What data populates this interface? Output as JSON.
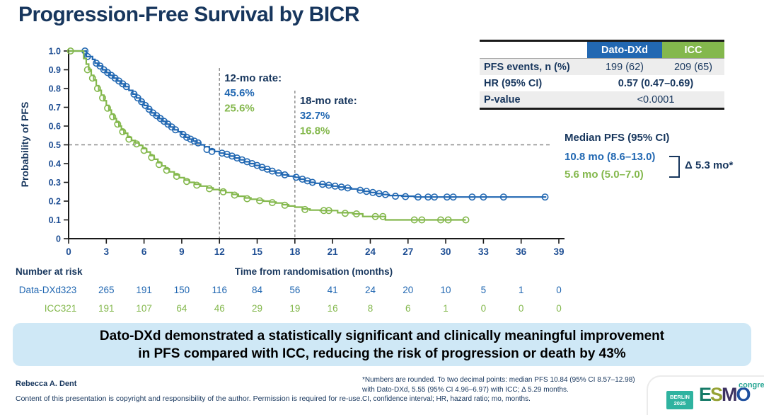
{
  "title": "Progression-Free Survival by BICR",
  "colors": {
    "navy": "#17365d",
    "dato_blue": "#2268b2",
    "icc_green": "#84b84d",
    "axis": "#1a1a1a",
    "dashed": "#8a8a8a",
    "banner_bg": "#cfe8f6",
    "row_shade": "#ededed"
  },
  "chart_data": {
    "type": "line",
    "variant": "kaplan_meier_step",
    "xlabel": "Time from randomisation (months)",
    "ylabel": "Probability of PFS",
    "xlim": [
      0,
      39
    ],
    "ylim": [
      0,
      1.0
    ],
    "xticks": [
      0,
      3,
      6,
      9,
      12,
      15,
      18,
      21,
      24,
      27,
      30,
      33,
      36,
      39
    ],
    "ytick_labels": [
      "1.0",
      "0.9",
      "0.8",
      "0.7",
      "0.6",
      "0.5",
      "0.4",
      "0.3",
      "0.2",
      "0.1",
      "0"
    ],
    "yticks": [
      1.0,
      0.9,
      0.8,
      0.7,
      0.6,
      0.5,
      0.4,
      0.3,
      0.2,
      0.1,
      0
    ],
    "grid": false,
    "legend": "none",
    "reference_lines": {
      "horizontal_at": 0.5,
      "vertical_at": [
        12,
        18
      ]
    },
    "annotations": [
      {
        "label": "12-mo rate:",
        "x_month": 12,
        "values": [
          {
            "text": "45.6%",
            "series": "Dato-DXd"
          },
          {
            "text": "25.6%",
            "series": "ICC"
          }
        ]
      },
      {
        "label": "18-mo rate:",
        "x_month": 18,
        "values": [
          {
            "text": "32.7%",
            "series": "Dato-DXd"
          },
          {
            "text": "16.8%",
            "series": "ICC"
          }
        ]
      }
    ],
    "series": [
      {
        "name": "Dato-DXd",
        "color": "#2268b2",
        "points": [
          [
            0,
            1.0
          ],
          [
            1.2,
            1.0
          ],
          [
            1.4,
            0.97
          ],
          [
            1.9,
            0.955
          ],
          [
            2.1,
            0.935
          ],
          [
            2.4,
            0.92
          ],
          [
            2.7,
            0.9
          ],
          [
            3.0,
            0.885
          ],
          [
            3.3,
            0.87
          ],
          [
            3.6,
            0.855
          ],
          [
            3.9,
            0.84
          ],
          [
            4.2,
            0.825
          ],
          [
            4.5,
            0.81
          ],
          [
            4.8,
            0.79
          ],
          [
            5.1,
            0.77
          ],
          [
            5.4,
            0.75
          ],
          [
            5.7,
            0.73
          ],
          [
            6.0,
            0.71
          ],
          [
            6.3,
            0.69
          ],
          [
            6.6,
            0.67
          ],
          [
            6.9,
            0.655
          ],
          [
            7.2,
            0.64
          ],
          [
            7.5,
            0.625
          ],
          [
            7.8,
            0.61
          ],
          [
            8.1,
            0.595
          ],
          [
            8.4,
            0.58
          ],
          [
            8.7,
            0.57
          ],
          [
            9.0,
            0.555
          ],
          [
            9.3,
            0.54
          ],
          [
            9.6,
            0.53
          ],
          [
            9.9,
            0.52
          ],
          [
            10.2,
            0.51
          ],
          [
            10.5,
            0.5
          ],
          [
            10.8,
            0.49
          ],
          [
            11.2,
            0.475
          ],
          [
            11.6,
            0.465
          ],
          [
            12.0,
            0.456
          ],
          [
            12.4,
            0.45
          ],
          [
            12.8,
            0.44
          ],
          [
            13.2,
            0.43
          ],
          [
            13.6,
            0.42
          ],
          [
            14.0,
            0.41
          ],
          [
            14.4,
            0.4
          ],
          [
            14.8,
            0.39
          ],
          [
            15.2,
            0.38
          ],
          [
            15.6,
            0.37
          ],
          [
            16.0,
            0.36
          ],
          [
            16.5,
            0.35
          ],
          [
            17.0,
            0.34
          ],
          [
            17.5,
            0.333
          ],
          [
            18.0,
            0.327
          ],
          [
            18.4,
            0.317
          ],
          [
            18.8,
            0.308
          ],
          [
            19.2,
            0.3
          ],
          [
            19.6,
            0.295
          ],
          [
            20.0,
            0.29
          ],
          [
            20.5,
            0.285
          ],
          [
            21.0,
            0.28
          ],
          [
            21.5,
            0.275
          ],
          [
            22.0,
            0.27
          ],
          [
            22.5,
            0.265
          ],
          [
            23.0,
            0.258
          ],
          [
            23.5,
            0.252
          ],
          [
            24.0,
            0.246
          ],
          [
            24.5,
            0.24
          ],
          [
            25.0,
            0.235
          ],
          [
            25.5,
            0.23
          ],
          [
            26.5,
            0.226
          ],
          [
            27.5,
            0.222
          ],
          [
            38.0,
            0.222
          ]
        ],
        "censors": [
          [
            1.3,
            1.0
          ],
          [
            1.5,
            0.97
          ],
          [
            2.2,
            0.935
          ],
          [
            2.5,
            0.92
          ],
          [
            2.8,
            0.9
          ],
          [
            3.1,
            0.885
          ],
          [
            3.4,
            0.87
          ],
          [
            3.7,
            0.855
          ],
          [
            4.0,
            0.84
          ],
          [
            4.3,
            0.825
          ],
          [
            4.6,
            0.81
          ],
          [
            5.2,
            0.77
          ],
          [
            5.5,
            0.75
          ],
          [
            5.8,
            0.73
          ],
          [
            6.1,
            0.71
          ],
          [
            6.4,
            0.69
          ],
          [
            6.7,
            0.67
          ],
          [
            7.0,
            0.655
          ],
          [
            7.3,
            0.64
          ],
          [
            7.6,
            0.625
          ],
          [
            7.9,
            0.61
          ],
          [
            8.2,
            0.595
          ],
          [
            8.5,
            0.58
          ],
          [
            9.1,
            0.555
          ],
          [
            9.4,
            0.54
          ],
          [
            9.7,
            0.53
          ],
          [
            10.0,
            0.52
          ],
          [
            10.3,
            0.51
          ],
          [
            11.0,
            0.475
          ],
          [
            11.4,
            0.465
          ],
          [
            12.2,
            0.456
          ],
          [
            12.6,
            0.45
          ],
          [
            13.0,
            0.44
          ],
          [
            13.4,
            0.43
          ],
          [
            13.8,
            0.42
          ],
          [
            14.2,
            0.41
          ],
          [
            14.6,
            0.4
          ],
          [
            15.0,
            0.39
          ],
          [
            15.4,
            0.38
          ],
          [
            15.8,
            0.37
          ],
          [
            16.2,
            0.36
          ],
          [
            16.7,
            0.35
          ],
          [
            17.2,
            0.34
          ],
          [
            18.1,
            0.327
          ],
          [
            18.6,
            0.317
          ],
          [
            19.0,
            0.308
          ],
          [
            19.4,
            0.3
          ],
          [
            20.2,
            0.29
          ],
          [
            20.7,
            0.285
          ],
          [
            21.2,
            0.28
          ],
          [
            21.7,
            0.275
          ],
          [
            22.2,
            0.27
          ],
          [
            23.2,
            0.258
          ],
          [
            23.7,
            0.252
          ],
          [
            24.2,
            0.246
          ],
          [
            24.7,
            0.24
          ],
          [
            25.2,
            0.235
          ],
          [
            26.0,
            0.226
          ],
          [
            26.8,
            0.224
          ],
          [
            27.8,
            0.222
          ],
          [
            28.6,
            0.222
          ],
          [
            29.1,
            0.222
          ],
          [
            30.1,
            0.222
          ],
          [
            30.6,
            0.222
          ],
          [
            32.1,
            0.222
          ],
          [
            33.0,
            0.222
          ],
          [
            34.6,
            0.222
          ],
          [
            37.9,
            0.222
          ]
        ]
      },
      {
        "name": "ICC",
        "color": "#84b84d",
        "points": [
          [
            0,
            1.0
          ],
          [
            1.05,
            1.0
          ],
          [
            1.2,
            0.96
          ],
          [
            1.4,
            0.93
          ],
          [
            1.6,
            0.9
          ],
          [
            1.8,
            0.87
          ],
          [
            2.0,
            0.845
          ],
          [
            2.2,
            0.815
          ],
          [
            2.4,
            0.79
          ],
          [
            2.6,
            0.765
          ],
          [
            2.8,
            0.735
          ],
          [
            3.0,
            0.71
          ],
          [
            3.2,
            0.685
          ],
          [
            3.4,
            0.663
          ],
          [
            3.6,
            0.64
          ],
          [
            3.8,
            0.62
          ],
          [
            4.0,
            0.6
          ],
          [
            4.2,
            0.58
          ],
          [
            4.4,
            0.562
          ],
          [
            4.7,
            0.54
          ],
          [
            5.0,
            0.523
          ],
          [
            5.3,
            0.51
          ],
          [
            5.6,
            0.497
          ],
          [
            5.9,
            0.48
          ],
          [
            6.2,
            0.462
          ],
          [
            6.5,
            0.443
          ],
          [
            6.8,
            0.423
          ],
          [
            7.1,
            0.405
          ],
          [
            7.4,
            0.388
          ],
          [
            7.7,
            0.372
          ],
          [
            8.0,
            0.356
          ],
          [
            8.4,
            0.34
          ],
          [
            8.8,
            0.325
          ],
          [
            9.2,
            0.312
          ],
          [
            9.6,
            0.3
          ],
          [
            10.0,
            0.29
          ],
          [
            10.5,
            0.28
          ],
          [
            11.0,
            0.27
          ],
          [
            11.5,
            0.262
          ],
          [
            12.0,
            0.256
          ],
          [
            12.5,
            0.246
          ],
          [
            13.0,
            0.236
          ],
          [
            13.5,
            0.226
          ],
          [
            14.0,
            0.217
          ],
          [
            14.5,
            0.21
          ],
          [
            15.0,
            0.205
          ],
          [
            15.5,
            0.2
          ],
          [
            16.0,
            0.195
          ],
          [
            16.5,
            0.19
          ],
          [
            17.0,
            0.181
          ],
          [
            17.5,
            0.174
          ],
          [
            18.0,
            0.168
          ],
          [
            18.6,
            0.158
          ],
          [
            19.2,
            0.152
          ],
          [
            20.0,
            0.15
          ],
          [
            21.4,
            0.138
          ],
          [
            22.6,
            0.132
          ],
          [
            23.4,
            0.118
          ],
          [
            25.2,
            0.1
          ],
          [
            31.6,
            0.1
          ]
        ],
        "censors": [
          [
            0.15,
            1.0
          ],
          [
            1.5,
            0.9
          ],
          [
            1.9,
            0.855
          ],
          [
            2.3,
            0.8
          ],
          [
            2.7,
            0.75
          ],
          [
            3.1,
            0.695
          ],
          [
            3.5,
            0.65
          ],
          [
            3.9,
            0.61
          ],
          [
            4.3,
            0.57
          ],
          [
            4.8,
            0.53
          ],
          [
            5.4,
            0.505
          ],
          [
            6.0,
            0.47
          ],
          [
            6.6,
            0.433
          ],
          [
            7.2,
            0.395
          ],
          [
            7.8,
            0.364
          ],
          [
            8.6,
            0.332
          ],
          [
            9.4,
            0.305
          ],
          [
            10.2,
            0.285
          ],
          [
            11.2,
            0.266
          ],
          [
            12.3,
            0.25
          ],
          [
            13.2,
            0.232
          ],
          [
            14.2,
            0.213
          ],
          [
            15.2,
            0.202
          ],
          [
            16.2,
            0.192
          ],
          [
            17.2,
            0.178
          ],
          [
            18.8,
            0.155
          ],
          [
            20.3,
            0.15
          ],
          [
            20.7,
            0.15
          ],
          [
            22.0,
            0.135
          ],
          [
            22.9,
            0.132
          ],
          [
            24.4,
            0.118
          ],
          [
            25.0,
            0.118
          ],
          [
            27.5,
            0.1
          ],
          [
            28.1,
            0.1
          ],
          [
            29.6,
            0.1
          ],
          [
            30.2,
            0.1
          ],
          [
            31.6,
            0.1
          ]
        ]
      }
    ],
    "at_risk": {
      "heading": "Number at risk",
      "rows": [
        {
          "label": "Data-DXd",
          "color": "#2268b2",
          "values": [
            323,
            265,
            191,
            150,
            116,
            84,
            56,
            41,
            24,
            20,
            10,
            5,
            1,
            0
          ]
        },
        {
          "label": "ICC",
          "color": "#84b84d",
          "values": [
            321,
            191,
            107,
            64,
            46,
            29,
            19,
            16,
            8,
            6,
            1,
            0,
            0,
            0
          ]
        }
      ]
    }
  },
  "stats_table": {
    "col1": "Dato-DXd",
    "col2": "ICC",
    "rows": [
      {
        "label": "PFS events, n (%)",
        "v1": "199 (62)",
        "v2": "209 (65)"
      },
      {
        "label": "HR (95% CI)",
        "value": "0.57 (0.47–0.69)"
      },
      {
        "label": "P-value",
        "value": "<0.0001"
      }
    ]
  },
  "median": {
    "heading": "Median PFS (95% CI)",
    "dato": "10.8 mo (8.6–13.0)",
    "icc": "5.6 mo (5.0–7.0)",
    "delta": "Δ 5.3 mo*"
  },
  "banner": {
    "line1": "Dato-DXd demonstrated a statistically significant and clinically meaningful improvement",
    "line2": "in PFS compared with ICC, reducing the risk of progression or death by 43%"
  },
  "footer": {
    "author": "Rebecca A. Dent",
    "copyright": "Content of this presentation is copyright and responsibility of the author. Permission is required for re-use.",
    "footnote_lines": [
      "*Numbers are rounded. To two decimal points: median PFS 10.84 (95% CI 8.57–12.98)",
      "with Dato-DXd, 5.55 (95% CI 4.96–6.97) with ICC; Δ 5.29 months.",
      "CI, confidence interval; HR, hazard ratio; mo, months."
    ]
  },
  "logo": {
    "badge_line1": "BERLIN",
    "badge_line2": "2025",
    "letters": [
      "E",
      "S",
      "M",
      "O"
    ],
    "congress": "congress"
  }
}
